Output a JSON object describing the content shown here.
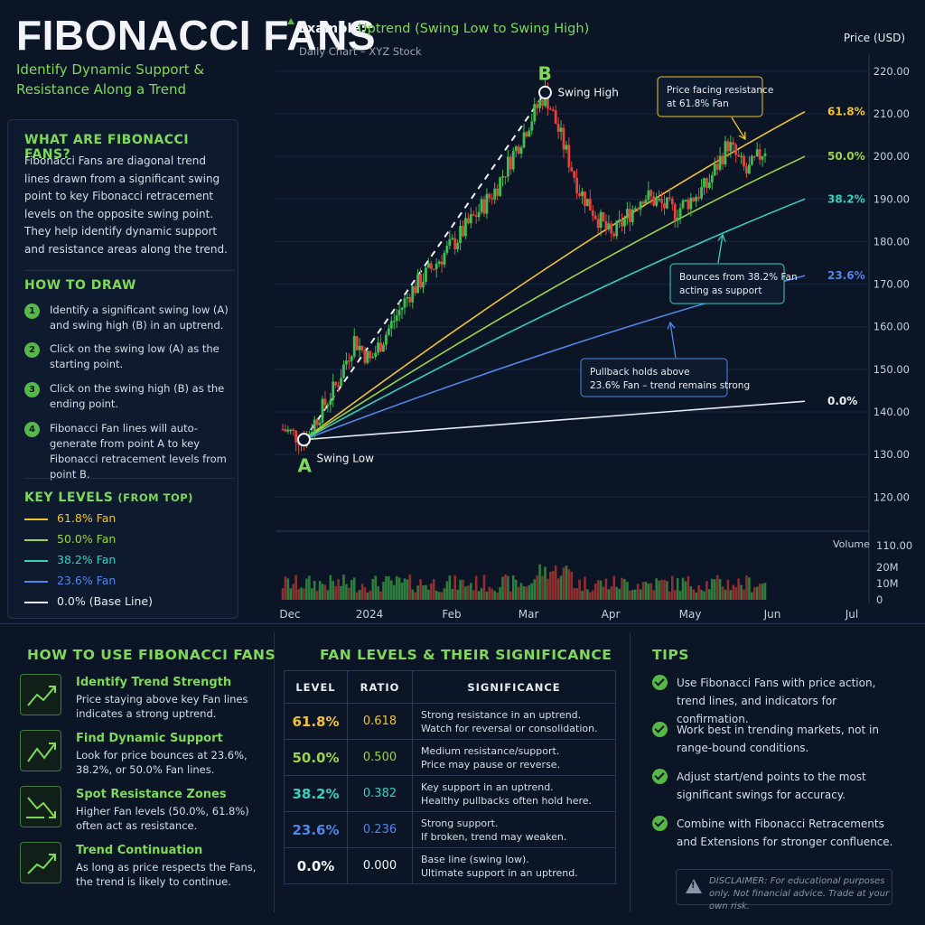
{
  "header": {
    "title": "FIBONACCI FANS",
    "subtitle": "Identify Dynamic Support & Resistance Along a Trend"
  },
  "left_panel": {
    "what_heading": "WHAT ARE FIBONACCI FANS?",
    "what_body": "Fibonacci Fans are diagonal trend lines drawn from a significant swing point to key Fibonacci retracement levels on the opposite swing point. They help identify dynamic support and resistance areas along the trend.",
    "how_heading": "HOW TO DRAW",
    "steps": [
      {
        "num": "1",
        "text": "Identify a significant swing low (A) and swing high (B) in an uptrend."
      },
      {
        "num": "2",
        "text": "Click on the swing low (A) as the starting point."
      },
      {
        "num": "3",
        "text": "Click on the swing high (B) as the ending point."
      },
      {
        "num": "4",
        "text": "Fibonacci Fan lines will auto-generate from point A to key Fibonacci retracement levels from point B."
      }
    ],
    "key_heading": "KEY LEVELS",
    "key_heading_suffix": "(FROM TOP)",
    "key_levels": [
      {
        "label": "61.8% Fan",
        "color": "#f2c230"
      },
      {
        "label": "50.0% Fan",
        "color": "#9bd444"
      },
      {
        "label": "38.2% Fan",
        "color": "#33d1c0"
      },
      {
        "label": "23.6% Fan",
        "color": "#4f86e8"
      },
      {
        "label": "0.0% (Base Line)",
        "color": "#e8ecf1"
      }
    ]
  },
  "chart_data": {
    "type": "candlestick",
    "title": "Example:",
    "title_highlight": "Uptrend (Swing Low to Swing High)",
    "subtitle": "Daily Chart – XYZ Stock",
    "ylabel": "Price (USD)",
    "ylim": [
      112,
      224
    ],
    "yticks": [
      120,
      130,
      140,
      150,
      160,
      170,
      180,
      190,
      200,
      210,
      220
    ],
    "ytick_labels": [
      "120.00",
      "130.00",
      "140.00",
      "150.00",
      "160.00",
      "170.00",
      "180.00",
      "190.00",
      "200.00",
      "210.00",
      "220.00"
    ],
    "x_labels": [
      "Dec",
      "2024",
      "Feb",
      "Mar",
      "Apr",
      "May",
      "Jun",
      "Jul"
    ],
    "x_label_days": [
      0,
      30,
      61,
      90,
      121,
      151,
      182,
      212
    ],
    "point_a": {
      "label": "A",
      "caption": "Swing Low",
      "day": 8,
      "price": 133.5
    },
    "point_b": {
      "label": "B",
      "caption": "Swing High",
      "day": 99,
      "price": 215
    },
    "fan_end_day": 197,
    "fan_levels": [
      {
        "label": "61.8%",
        "ratio": 0.618,
        "end_price": 210.5,
        "color": "#f2c230"
      },
      {
        "label": "50.0%",
        "ratio": 0.5,
        "end_price": 200,
        "color": "#9bd444"
      },
      {
        "label": "38.2%",
        "ratio": 0.382,
        "end_price": 190,
        "color": "#33d1c0"
      },
      {
        "label": "23.6%",
        "ratio": 0.236,
        "end_price": 172,
        "color": "#4f86e8"
      },
      {
        "label": "0.0%",
        "ratio": 0.0,
        "end_price": 142.5,
        "color": "#e8ecf1"
      }
    ],
    "annotations": [
      {
        "text": [
          "Price facing resistance",
          "at 61.8% Fan"
        ],
        "color": "#f2c230"
      },
      {
        "text": [
          "Bounces from 38.2% Fan",
          "acting as support"
        ],
        "color": "#33d1c0"
      },
      {
        "text": [
          "Pullback holds above",
          "23.6% Fan – trend remains strong"
        ],
        "color": "#4f86e8"
      }
    ],
    "volume_label": "Volume",
    "volume_ticks": [
      0,
      10,
      20,
      110
    ],
    "volume_tick_labels": [
      "0",
      "10M",
      "20M",
      "110.00"
    ],
    "price_path": [
      {
        "day": 0,
        "price": 136
      },
      {
        "day": 8,
        "price": 133.5
      },
      {
        "day": 20,
        "price": 146
      },
      {
        "day": 27,
        "price": 157
      },
      {
        "day": 33,
        "price": 152
      },
      {
        "day": 48,
        "price": 168
      },
      {
        "day": 65,
        "price": 180
      },
      {
        "day": 80,
        "price": 192
      },
      {
        "day": 93,
        "price": 208
      },
      {
        "day": 99,
        "price": 215
      },
      {
        "day": 112,
        "price": 192
      },
      {
        "day": 124,
        "price": 181
      },
      {
        "day": 136,
        "price": 191
      },
      {
        "day": 148,
        "price": 187
      },
      {
        "day": 160,
        "price": 193
      },
      {
        "day": 168,
        "price": 203
      },
      {
        "day": 175,
        "price": 196
      },
      {
        "day": 182,
        "price": 202
      }
    ]
  },
  "how_to_use": {
    "heading": "HOW TO USE FIBONACCI FANS",
    "items": [
      {
        "title": "Identify Trend Strength",
        "desc": "Price staying above key Fan lines indicates a strong uptrend."
      },
      {
        "title": "Find Dynamic Support",
        "desc": "Look for price bounces at 23.6%, 38.2%, or 50.0% Fan lines."
      },
      {
        "title": "Spot Resistance Zones",
        "desc": "Higher Fan levels (50.0%, 61.8%) often act as resistance."
      },
      {
        "title": "Trend Continuation",
        "desc": "As long as price respects the Fans, the trend is likely to continue."
      }
    ]
  },
  "significance": {
    "heading": "FAN LEVELS & THEIR SIGNIFICANCE",
    "columns": [
      "LEVEL",
      "RATIO",
      "SIGNIFICANCE"
    ],
    "rows": [
      {
        "level": "61.8%",
        "ratio": "0.618",
        "lines": [
          "Strong resistance in an uptrend.",
          "Watch for reversal or consolidation."
        ],
        "color": "#f2c230"
      },
      {
        "level": "50.0%",
        "ratio": "0.500",
        "lines": [
          "Medium resistance/support.",
          "Price may pause or reverse."
        ],
        "color": "#9bd444"
      },
      {
        "level": "38.2%",
        "ratio": "0.382",
        "lines": [
          "Key support in an uptrend.",
          "Healthy pullbacks often hold here."
        ],
        "color": "#33d1c0"
      },
      {
        "level": "23.6%",
        "ratio": "0.236",
        "lines": [
          "Strong support.",
          "If broken, trend may weaken."
        ],
        "color": "#4f86e8"
      },
      {
        "level": "0.0%",
        "ratio": "0.000",
        "lines": [
          "Base line (swing low).",
          "Ultimate support in an uptrend."
        ],
        "color": "#f2f4f7"
      }
    ]
  },
  "tips": {
    "heading": "TIPS",
    "items": [
      "Use Fibonacci Fans with price action, trend lines, and indicators for confirmation.",
      "Work best in trending markets, not in range-bound conditions.",
      "Adjust start/end points to the most significant swings for accuracy.",
      "Combine with Fibonacci Retracements and Extensions for stronger confluence."
    ],
    "disclaimer": "DISCLAIMER: For educational purposes only. Not financial advice. Trade at your own risk."
  }
}
